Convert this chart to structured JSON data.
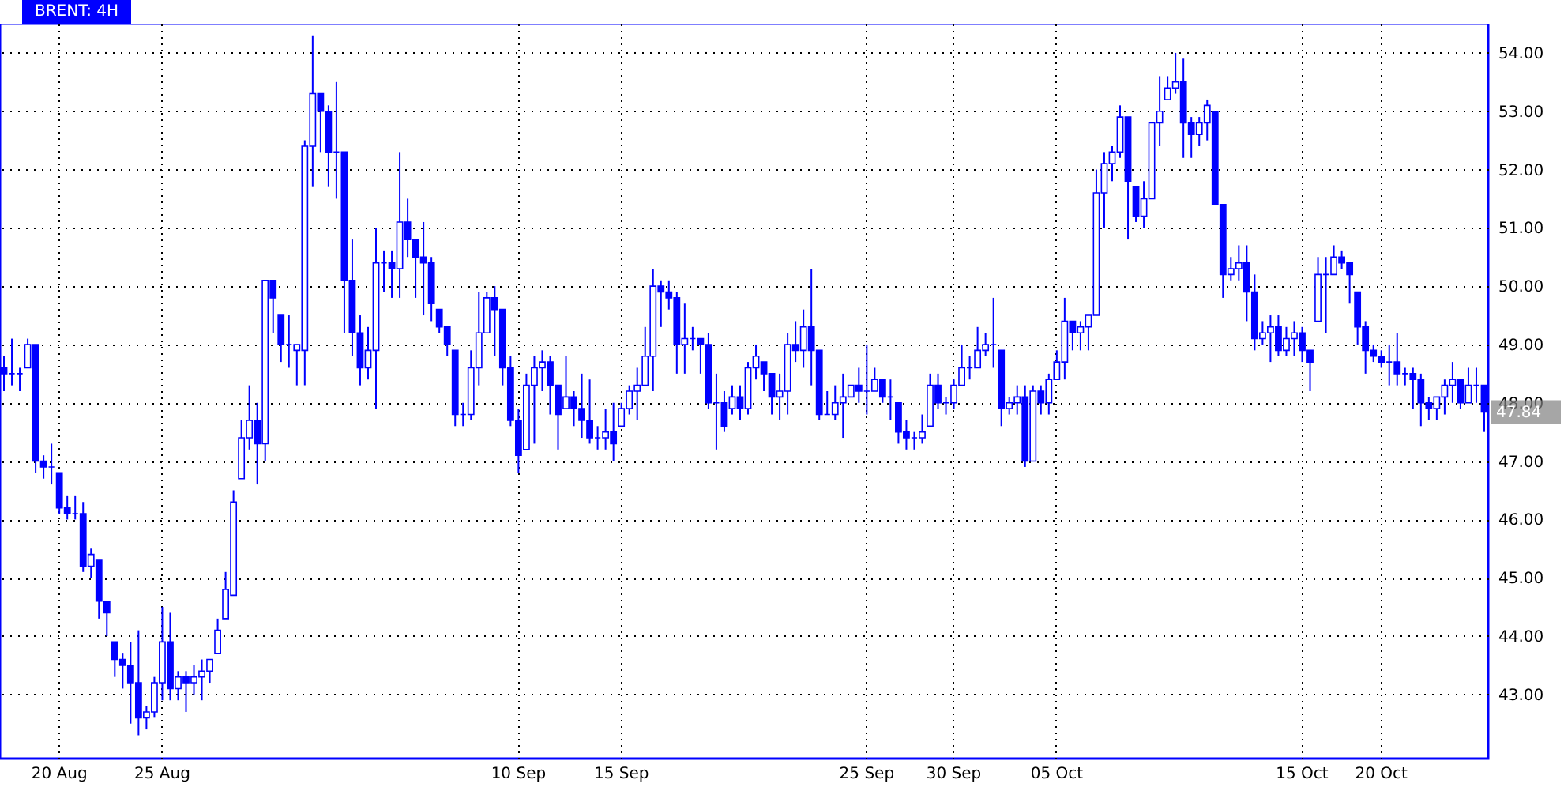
{
  "chart_data": {
    "type": "candlestick",
    "title": "BRENT: 4H",
    "color": "#0000ff",
    "categories": [
      null,
      null,
      null,
      null,
      null,
      null,
      null,
      "20 Aug",
      null,
      null,
      null,
      null,
      null,
      null,
      null,
      null,
      null,
      null,
      null,
      null,
      "25 Aug",
      null,
      null,
      null,
      null,
      null,
      null,
      null,
      null,
      null,
      null,
      null,
      null,
      null,
      null,
      null,
      null,
      null,
      null,
      null,
      null,
      null,
      null,
      null,
      null,
      null,
      null,
      null,
      null,
      null,
      null,
      null,
      null,
      null,
      null,
      null,
      null,
      null,
      null,
      null,
      null,
      null,
      null,
      null,
      null,
      "10 Sep",
      null,
      null,
      null,
      null,
      null,
      null,
      null,
      null,
      null,
      null,
      null,
      null,
      "15 Sep",
      null,
      null,
      null,
      null,
      null,
      null,
      null,
      null,
      null,
      null,
      null,
      null,
      null,
      null,
      null,
      null,
      null,
      null,
      null,
      null,
      null,
      null,
      null,
      null,
      null,
      null,
      null,
      null,
      null,
      null,
      "25 Sep",
      null,
      null,
      null,
      null,
      null,
      null,
      null,
      null,
      null,
      null,
      "30 Sep",
      null,
      null,
      null,
      null,
      null,
      null,
      null,
      null,
      null,
      null,
      null,
      null,
      "05 Oct",
      null,
      null,
      null,
      null,
      null,
      null,
      null,
      null,
      null,
      null,
      null,
      null,
      null,
      null,
      null,
      null,
      null,
      null,
      null,
      null,
      null,
      null,
      null,
      null,
      null,
      null,
      null,
      null,
      null,
      null,
      "15 Oct",
      null,
      null,
      null,
      null,
      null,
      null,
      null,
      null,
      null,
      "20 Oct",
      null,
      null,
      null,
      null,
      null,
      null,
      null,
      null,
      null,
      null,
      null,
      null,
      null
    ],
    "ohlc": [
      [
        48.6,
        48.8,
        48.2,
        48.5
      ],
      [
        48.5,
        49.1,
        48.3,
        48.5
      ],
      [
        48.5,
        48.6,
        48.2,
        48.5
      ],
      [
        48.6,
        49.1,
        48.6,
        49.0
      ],
      [
        49.0,
        49.0,
        46.8,
        47.0
      ],
      [
        47.0,
        47.1,
        46.7,
        46.9
      ],
      [
        46.9,
        47.3,
        46.6,
        46.9
      ],
      [
        46.8,
        46.8,
        46.1,
        46.2
      ],
      [
        46.2,
        46.4,
        46.0,
        46.1
      ],
      [
        46.1,
        46.4,
        46.0,
        46.1
      ],
      [
        46.1,
        46.3,
        45.1,
        45.2
      ],
      [
        45.2,
        45.5,
        45.0,
        45.4
      ],
      [
        45.3,
        45.3,
        44.3,
        44.6
      ],
      [
        44.6,
        44.6,
        44.0,
        44.4
      ],
      [
        43.9,
        43.9,
        43.3,
        43.6
      ],
      [
        43.6,
        43.7,
        43.1,
        43.5
      ],
      [
        43.5,
        43.9,
        42.5,
        43.2
      ],
      [
        43.2,
        44.1,
        42.3,
        42.6
      ],
      [
        42.6,
        42.8,
        42.4,
        42.7
      ],
      [
        42.7,
        43.3,
        42.6,
        43.2
      ],
      [
        43.2,
        44.5,
        42.9,
        43.9
      ],
      [
        43.9,
        44.4,
        42.9,
        43.1
      ],
      [
        43.1,
        43.4,
        42.9,
        43.3
      ],
      [
        43.3,
        43.4,
        42.7,
        43.2
      ],
      [
        43.2,
        43.5,
        43.0,
        43.3
      ],
      [
        43.3,
        43.6,
        42.9,
        43.4
      ],
      [
        43.4,
        43.6,
        43.2,
        43.6
      ],
      [
        43.7,
        44.3,
        43.7,
        44.1
      ],
      [
        44.3,
        45.1,
        44.3,
        44.8
      ],
      [
        44.7,
        46.5,
        44.7,
        46.3
      ],
      [
        46.7,
        47.7,
        46.7,
        47.4
      ],
      [
        47.4,
        48.3,
        47.2,
        47.7
      ],
      [
        47.7,
        48.0,
        46.6,
        47.3
      ],
      [
        47.3,
        50.1,
        47.0,
        50.1
      ],
      [
        50.1,
        50.1,
        49.2,
        49.8
      ],
      [
        49.5,
        49.5,
        48.7,
        49.0
      ],
      [
        49.0,
        49.5,
        48.6,
        49.0
      ],
      [
        48.9,
        49.0,
        48.3,
        49.0
      ],
      [
        48.9,
        52.5,
        48.3,
        52.4
      ],
      [
        52.4,
        54.3,
        51.7,
        53.3
      ],
      [
        53.3,
        53.3,
        52.3,
        53.0
      ],
      [
        53.0,
        53.1,
        51.7,
        52.3
      ],
      [
        52.3,
        53.5,
        51.5,
        52.3
      ],
      [
        52.3,
        52.3,
        49.2,
        50.1
      ],
      [
        50.1,
        50.8,
        48.8,
        49.2
      ],
      [
        49.2,
        49.5,
        48.3,
        48.6
      ],
      [
        48.6,
        49.3,
        48.4,
        48.9
      ],
      [
        48.9,
        51.0,
        47.9,
        50.4
      ],
      [
        50.4,
        50.6,
        49.9,
        50.4
      ],
      [
        50.4,
        50.6,
        49.8,
        50.3
      ],
      [
        50.3,
        52.3,
        49.8,
        51.1
      ],
      [
        51.1,
        51.5,
        50.5,
        50.8
      ],
      [
        50.8,
        50.8,
        49.8,
        50.5
      ],
      [
        50.5,
        51.1,
        49.5,
        50.4
      ],
      [
        50.4,
        50.5,
        49.4,
        49.7
      ],
      [
        49.6,
        49.6,
        49.2,
        49.3
      ],
      [
        49.3,
        49.3,
        48.8,
        49.0
      ],
      [
        48.9,
        48.9,
        47.6,
        47.8
      ],
      [
        47.8,
        48.0,
        47.6,
        47.8
      ],
      [
        47.8,
        48.9,
        47.7,
        48.6
      ],
      [
        48.6,
        49.9,
        48.3,
        49.2
      ],
      [
        49.2,
        49.9,
        49.2,
        49.8
      ],
      [
        49.8,
        50.0,
        48.8,
        49.6
      ],
      [
        49.6,
        49.6,
        48.3,
        48.6
      ],
      [
        48.6,
        48.8,
        47.6,
        47.7
      ],
      [
        47.7,
        47.9,
        46.8,
        47.1
      ],
      [
        47.2,
        48.5,
        47.2,
        48.3
      ],
      [
        48.3,
        48.8,
        47.3,
        48.6
      ],
      [
        48.6,
        48.9,
        48.2,
        48.7
      ],
      [
        48.7,
        48.8,
        47.8,
        48.3
      ],
      [
        48.3,
        48.3,
        47.2,
        47.8
      ],
      [
        47.9,
        48.8,
        47.9,
        48.1
      ],
      [
        48.1,
        48.2,
        47.6,
        47.9
      ],
      [
        47.9,
        48.5,
        47.4,
        47.7
      ],
      [
        47.7,
        48.4,
        47.3,
        47.4
      ],
      [
        47.4,
        47.6,
        47.2,
        47.4
      ],
      [
        47.4,
        47.9,
        47.2,
        47.5
      ],
      [
        47.5,
        48.0,
        47.0,
        47.3
      ],
      [
        47.6,
        48.0,
        47.6,
        47.9
      ],
      [
        47.9,
        48.3,
        47.8,
        48.2
      ],
      [
        48.2,
        48.6,
        47.7,
        48.3
      ],
      [
        48.3,
        49.3,
        48.3,
        48.8
      ],
      [
        48.8,
        50.3,
        48.2,
        50.0
      ],
      [
        50.0,
        50.1,
        49.3,
        49.9
      ],
      [
        49.9,
        50.1,
        49.6,
        49.8
      ],
      [
        49.8,
        49.9,
        48.5,
        49.0
      ],
      [
        49.0,
        49.7,
        48.5,
        49.1
      ],
      [
        49.1,
        49.3,
        48.9,
        49.1
      ],
      [
        49.1,
        49.1,
        48.5,
        49.0
      ],
      [
        49.0,
        49.2,
        47.9,
        48.0
      ],
      [
        48.0,
        48.5,
        47.2,
        48.0
      ],
      [
        48.0,
        48.2,
        47.5,
        47.6
      ],
      [
        47.9,
        48.3,
        47.8,
        48.1
      ],
      [
        48.1,
        48.3,
        47.7,
        47.9
      ],
      [
        47.9,
        48.7,
        47.8,
        48.6
      ],
      [
        48.6,
        49.0,
        48.4,
        48.8
      ],
      [
        48.7,
        48.7,
        48.2,
        48.5
      ],
      [
        48.5,
        48.5,
        47.8,
        48.1
      ],
      [
        48.1,
        48.5,
        47.7,
        48.2
      ],
      [
        48.2,
        49.2,
        47.8,
        49.0
      ],
      [
        49.0,
        49.4,
        48.7,
        48.9
      ],
      [
        48.9,
        49.6,
        48.6,
        49.3
      ],
      [
        49.3,
        50.3,
        48.3,
        48.9
      ],
      [
        48.9,
        48.9,
        47.7,
        47.8
      ],
      [
        47.8,
        48.2,
        47.8,
        47.8
      ],
      [
        47.8,
        48.3,
        47.7,
        48.0
      ],
      [
        48.0,
        48.5,
        47.4,
        48.1
      ],
      [
        48.1,
        48.3,
        48.1,
        48.3
      ],
      [
        48.3,
        48.6,
        48.0,
        48.2
      ],
      [
        48.2,
        49.0,
        47.8,
        48.2
      ],
      [
        48.2,
        48.6,
        48.2,
        48.4
      ],
      [
        48.4,
        48.4,
        48.0,
        48.1
      ],
      [
        48.1,
        48.4,
        47.7,
        48.1
      ],
      [
        48.0,
        48.0,
        47.3,
        47.5
      ],
      [
        47.5,
        47.7,
        47.2,
        47.4
      ],
      [
        47.4,
        47.5,
        47.2,
        47.4
      ],
      [
        47.4,
        47.8,
        47.3,
        47.5
      ],
      [
        47.6,
        48.5,
        47.6,
        48.3
      ],
      [
        48.3,
        48.5,
        47.9,
        48.0
      ],
      [
        48.0,
        48.1,
        47.8,
        48.0
      ],
      [
        48.0,
        48.4,
        47.9,
        48.3
      ],
      [
        48.3,
        49.0,
        48.3,
        48.6
      ],
      [
        48.6,
        48.8,
        48.4,
        48.6
      ],
      [
        48.6,
        49.3,
        48.6,
        48.9
      ],
      [
        48.9,
        49.2,
        48.8,
        49.0
      ],
      [
        49.0,
        49.8,
        48.6,
        49.0
      ],
      [
        48.9,
        48.9,
        47.6,
        47.9
      ],
      [
        47.9,
        48.1,
        47.8,
        48.0
      ],
      [
        48.0,
        48.3,
        47.8,
        48.1
      ],
      [
        48.1,
        48.3,
        46.9,
        47.0
      ],
      [
        47.0,
        48.3,
        47.0,
        48.2
      ],
      [
        48.2,
        48.3,
        47.8,
        48.0
      ],
      [
        48.0,
        48.5,
        47.8,
        48.4
      ],
      [
        48.4,
        48.9,
        48.4,
        48.7
      ],
      [
        48.7,
        49.8,
        48.4,
        49.4
      ],
      [
        49.4,
        49.4,
        48.9,
        49.2
      ],
      [
        49.2,
        49.4,
        48.9,
        49.3
      ],
      [
        49.3,
        49.5,
        48.9,
        49.5
      ],
      [
        49.5,
        52.0,
        49.5,
        51.6
      ],
      [
        51.6,
        52.3,
        51.0,
        52.1
      ],
      [
        52.1,
        52.4,
        51.8,
        52.3
      ],
      [
        52.3,
        53.1,
        52.2,
        52.9
      ],
      [
        52.9,
        52.9,
        50.8,
        51.8
      ],
      [
        51.7,
        51.7,
        51.1,
        51.2
      ],
      [
        51.2,
        51.8,
        51.0,
        51.5
      ],
      [
        51.5,
        52.8,
        51.5,
        52.8
      ],
      [
        52.8,
        53.6,
        52.4,
        53.0
      ],
      [
        53.2,
        53.6,
        53.2,
        53.4
      ],
      [
        53.4,
        54.0,
        53.3,
        53.5
      ],
      [
        53.5,
        53.9,
        52.2,
        52.8
      ],
      [
        52.8,
        52.9,
        52.2,
        52.6
      ],
      [
        52.6,
        52.9,
        52.4,
        52.8
      ],
      [
        52.8,
        53.2,
        52.5,
        53.1
      ],
      [
        53.0,
        53.0,
        51.4,
        51.4
      ],
      [
        51.4,
        51.4,
        49.8,
        50.2
      ],
      [
        50.2,
        50.5,
        50.1,
        50.3
      ],
      [
        50.3,
        50.7,
        50.1,
        50.4
      ],
      [
        50.4,
        50.7,
        49.4,
        49.9
      ],
      [
        49.9,
        50.2,
        48.9,
        49.1
      ],
      [
        49.1,
        49.4,
        49.0,
        49.2
      ],
      [
        49.2,
        49.5,
        48.7,
        49.3
      ],
      [
        49.3,
        49.5,
        48.8,
        48.9
      ],
      [
        48.9,
        49.3,
        48.8,
        49.1
      ],
      [
        49.1,
        49.4,
        48.8,
        49.2
      ],
      [
        49.2,
        49.3,
        48.7,
        48.9
      ],
      [
        48.9,
        48.9,
        48.2,
        48.7
      ],
      [
        49.4,
        50.5,
        49.4,
        50.2
      ],
      [
        50.2,
        50.5,
        49.2,
        50.2
      ],
      [
        50.2,
        50.7,
        50.2,
        50.5
      ],
      [
        50.5,
        50.6,
        50.3,
        50.4
      ],
      [
        50.4,
        50.4,
        49.7,
        50.2
      ],
      [
        49.9,
        49.9,
        49.0,
        49.3
      ],
      [
        49.3,
        49.4,
        48.5,
        48.9
      ],
      [
        48.9,
        49.0,
        48.7,
        48.8
      ],
      [
        48.8,
        48.9,
        48.6,
        48.7
      ],
      [
        48.7,
        49.0,
        48.3,
        48.7
      ],
      [
        48.7,
        49.2,
        48.3,
        48.5
      ],
      [
        48.5,
        48.6,
        48.3,
        48.5
      ],
      [
        48.5,
        48.6,
        47.9,
        48.4
      ],
      [
        48.4,
        48.5,
        47.6,
        48.0
      ],
      [
        48.0,
        48.1,
        47.7,
        47.9
      ],
      [
        47.9,
        48.1,
        47.7,
        48.1
      ],
      [
        48.1,
        48.4,
        47.8,
        48.3
      ],
      [
        48.3,
        48.7,
        48.0,
        48.4
      ],
      [
        48.4,
        48.4,
        47.9,
        48.0
      ],
      [
        48.0,
        48.6,
        48.0,
        48.3
      ],
      [
        48.3,
        48.6,
        48.0,
        48.3
      ],
      [
        48.3,
        48.3,
        47.5,
        47.84
      ]
    ],
    "ylim": [
      41.9,
      54.5
    ],
    "yticks": [
      {
        "value": 43,
        "label": "43.00"
      },
      {
        "value": 44,
        "label": "44.00"
      },
      {
        "value": 45,
        "label": "45.00"
      },
      {
        "value": 46,
        "label": "46.00"
      },
      {
        "value": 47,
        "label": "47.00"
      },
      {
        "value": 48,
        "label": "48.00"
      },
      {
        "value": 49,
        "label": "49.00"
      },
      {
        "value": 50,
        "label": "50.00"
      },
      {
        "value": 51,
        "label": "51.00"
      },
      {
        "value": 52,
        "label": "52.00"
      },
      {
        "value": 53,
        "label": "53.00"
      },
      {
        "value": 54,
        "label": "54.00"
      }
    ],
    "grid": true,
    "annotations": [
      "47.84"
    ]
  }
}
